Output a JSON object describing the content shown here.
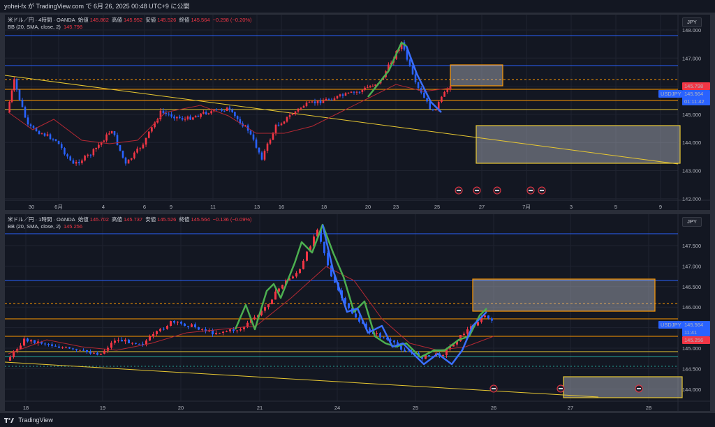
{
  "header": {
    "caption": "yohei-fx が TradingView.com で 6月 26, 2025 00:48 UTC+9 に公開"
  },
  "footer": {
    "brand": "TradingView"
  },
  "colors": {
    "bg": "#131722",
    "up": "#4caf50",
    "down": "#f23645",
    "blue_line": "#2962ff",
    "orange": "#ff9800",
    "yellow": "#e8c832",
    "bb": "#b22833",
    "green_path": "#4caf50",
    "blue_path": "#2962ff"
  },
  "top_chart": {
    "legend": {
      "symbol": "米ドル／円 · 4時間 · OANDA",
      "o_label": "始値",
      "o": "145.862",
      "h_label": "高値",
      "h": "145.952",
      "l_label": "安値",
      "l": "145.526",
      "c_label": "終値",
      "c": "145.564",
      "chg": "−0.298 (−0.20%)"
    },
    "bb_legend": {
      "label": "BB (20, SMA, close, 2)",
      "value": "145.798"
    },
    "currency": "JPY",
    "price_axis": [
      "148.000",
      "147.000",
      "146.000",
      "145.000",
      "144.000",
      "143.000",
      "142.000"
    ],
    "price_tags": {
      "bb": "145.798",
      "symbol": "USDJPY",
      "price": "145.564",
      "countdown": "01:11:42"
    },
    "time_axis": [
      "30",
      "6月",
      "4",
      "6",
      "9",
      "11",
      "13",
      "16",
      "18",
      "20",
      "23",
      "25",
      "27",
      "7月",
      "3",
      "5",
      "9"
    ]
  },
  "bottom_chart": {
    "legend": {
      "symbol": "米ドル／円 · 1時間 · OANDA",
      "o_label": "始値",
      "o": "145.702",
      "h_label": "高値",
      "h": "145.737",
      "l_label": "安値",
      "l": "145.526",
      "c_label": "終値",
      "c": "145.564",
      "chg": "−0.136 (−0.09%)"
    },
    "bb_legend": {
      "label": "BB (20, SMA, close, 2)",
      "value": "145.256"
    },
    "currency": "JPY",
    "price_axis": [
      "147.500",
      "147.000",
      "146.500",
      "146.000",
      "145.500",
      "145.000",
      "144.500",
      "144.000"
    ],
    "price_tags": {
      "symbol": "USDJPY",
      "price": "145.564",
      "countdown": "11:41",
      "bb": "145.256"
    },
    "time_axis": [
      "18",
      "19",
      "20",
      "21",
      "24",
      "25",
      "26",
      "27",
      "28"
    ]
  }
}
